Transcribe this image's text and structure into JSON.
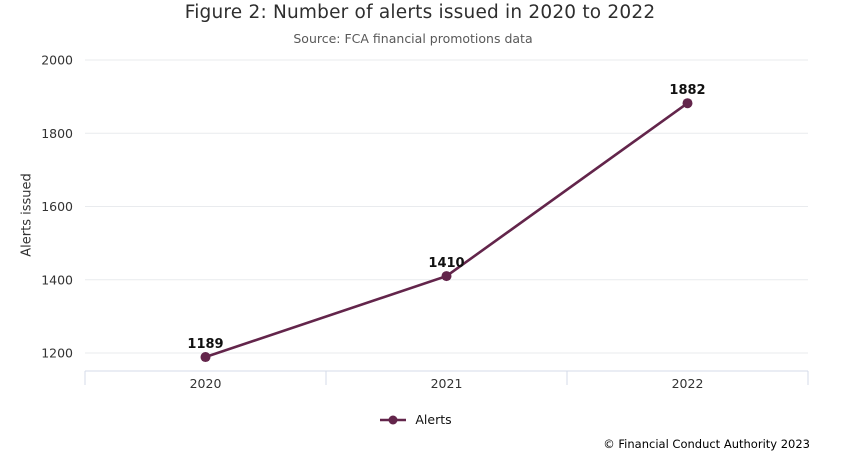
{
  "chart_data": {
    "type": "line",
    "categories": [
      "2020",
      "2021",
      "2022"
    ],
    "series": [
      {
        "name": "Alerts",
        "values": [
          1189,
          1410,
          1882
        ]
      }
    ],
    "title": "Figure 2: Number of alerts issued in 2020 to 2022",
    "subtitle": "Source: FCA financial promotions data",
    "xlabel": "",
    "ylabel": "Alerts issued",
    "ylim": [
      1150,
      2000
    ],
    "yticks": [
      1200,
      1400,
      1600,
      1800,
      2000
    ],
    "grid": true,
    "data_labels": true,
    "legend_position": "bottom",
    "marker": "circle"
  },
  "colors": {
    "line": "#63254b",
    "marker": "#63254b",
    "grid": "#e9ebee",
    "axis": "#d4dbe8",
    "title_text": "#2e2e2e",
    "subtitle_text": "#595959",
    "tick_text": "#333333",
    "data_label_text": "#111111"
  },
  "footer": {
    "copyright": "© Financial Conduct Authority 2023"
  }
}
